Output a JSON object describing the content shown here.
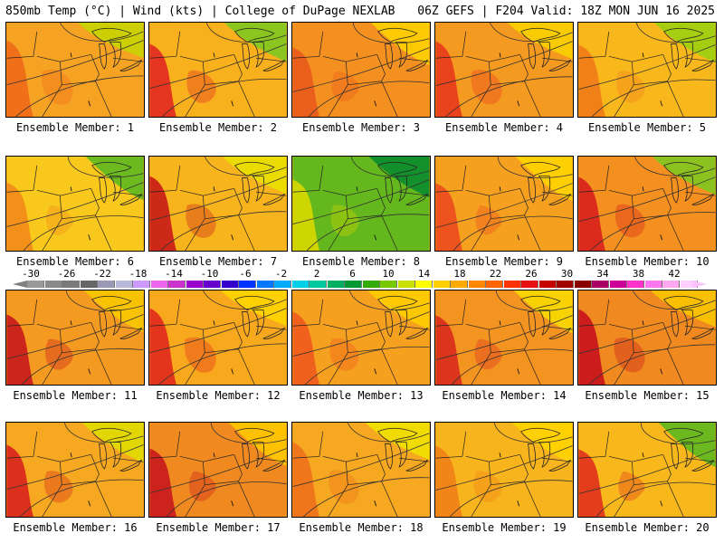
{
  "header": {
    "left": "850mb Temp (°C) | Wind (kts) | College of DuPage NEXLAB",
    "right": "06Z GEFS | F204 Valid: 18Z MON JUN 16 2025"
  },
  "caption_prefix": "Ensemble Member: ",
  "members": [
    {
      "id": "1",
      "base": "#f6a324",
      "hot": "#f06a18",
      "cool": "#c8d400"
    },
    {
      "id": "2",
      "base": "#f8b01c",
      "hot": "#e02820",
      "cool": "#7ec820"
    },
    {
      "id": "3",
      "base": "#f49020",
      "hot": "#ea5a1c",
      "cool": "#ffd000"
    },
    {
      "id": "4",
      "base": "#f49a20",
      "hot": "#e83a1c",
      "cool": "#f8d000"
    },
    {
      "id": "5",
      "base": "#f8b81c",
      "hot": "#f07a18",
      "cool": "#9cd010"
    },
    {
      "id": "6",
      "base": "#f8c81c",
      "hot": "#f28a1a",
      "cool": "#5cb820"
    },
    {
      "id": "7",
      "base": "#f8b41c",
      "hot": "#c81a1a",
      "cool": "#e8e000"
    },
    {
      "id": "8",
      "base": "#64b81e",
      "hot": "#d8d800",
      "cool": "#0a8c2c"
    },
    {
      "id": "9",
      "base": "#f6a020",
      "hot": "#ec4a1c",
      "cool": "#ffd400"
    },
    {
      "id": "10",
      "base": "#f49020",
      "hot": "#d8201c",
      "cool": "#80c820"
    },
    {
      "id": "11",
      "base": "#f49a20",
      "hot": "#c8181c",
      "cool": "#f8c800"
    },
    {
      "id": "12",
      "base": "#f8a81c",
      "hot": "#e0281c",
      "cool": "#ffd400"
    },
    {
      "id": "13",
      "base": "#f6a020",
      "hot": "#ee5a1c",
      "cool": "#ffcc00"
    },
    {
      "id": "14",
      "base": "#f49420",
      "hot": "#d82a1c",
      "cool": "#f8d800"
    },
    {
      "id": "15",
      "base": "#f08a20",
      "hot": "#c8101c",
      "cool": "#f8c400"
    },
    {
      "id": "16",
      "base": "#f6a820",
      "hot": "#d8241c",
      "cool": "#e0dc00"
    },
    {
      "id": "17",
      "base": "#f08a20",
      "hot": "#c8181c",
      "cool": "#ffc800"
    },
    {
      "id": "18",
      "base": "#f6a820",
      "hot": "#ee701a",
      "cool": "#f0e000"
    },
    {
      "id": "19",
      "base": "#f8b41c",
      "hot": "#f08018",
      "cool": "#ffd400"
    },
    {
      "id": "20",
      "base": "#f8b81c",
      "hot": "#e0301c",
      "cool": "#5cb820"
    }
  ],
  "legend": {
    "labels": [
      "-30",
      "-26",
      "-22",
      "-18",
      "-14",
      "-10",
      "-6",
      "-2",
      "2",
      "6",
      "10",
      "14",
      "18",
      "22",
      "26",
      "30",
      "34",
      "38",
      "42"
    ],
    "colors": [
      "#999999",
      "#8a8a8a",
      "#7a7a7a",
      "#666666",
      "#9a9ab4",
      "#b8b8d8",
      "#cc99ff",
      "#ee66ee",
      "#cc33cc",
      "#9900cc",
      "#6600cc",
      "#3300cc",
      "#0033ff",
      "#0077ff",
      "#00aaff",
      "#00d0e8",
      "#00c8a0",
      "#00b060",
      "#009933",
      "#33aa00",
      "#77c800",
      "#c8e000",
      "#ffff00",
      "#ffd000",
      "#ffaa00",
      "#ff8800",
      "#ff6600",
      "#ff3300",
      "#e81010",
      "#c40000",
      "#a00000",
      "#880000",
      "#aa0066",
      "#cc0099",
      "#ff33cc",
      "#ff77ee",
      "#ffa8f0",
      "#ffd0ff"
    ]
  }
}
